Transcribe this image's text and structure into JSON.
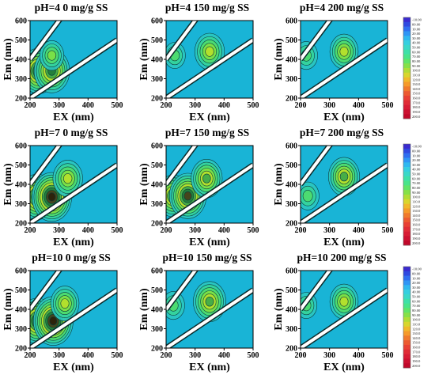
{
  "chart_data": [
    {
      "type": "heatmap",
      "title": "pH=4  0 mg/g SS",
      "xlabel": "EX (nm)",
      "ylabel": "Em (nm)",
      "xlim": [
        200,
        500
      ],
      "ylim": [
        200,
        600
      ],
      "xticks": [
        "200",
        "300",
        "400",
        "500"
      ],
      "yticks": [
        "200",
        "300",
        "400",
        "500",
        "600"
      ],
      "peaks": [
        {
          "ex": 230,
          "em": 340,
          "level": 0.85
        },
        {
          "ex": 275,
          "em": 340,
          "level": 0.8
        },
        {
          "ex": 275,
          "em": 420,
          "level": 0.4
        }
      ]
    },
    {
      "type": "heatmap",
      "title": "pH=4 150 mg/g SS",
      "xlabel": "EX (nm)",
      "ylabel": "Em (nm)",
      "xlim": [
        200,
        500
      ],
      "ylim": [
        200,
        600
      ],
      "xticks": [
        "200",
        "300",
        "400",
        "500"
      ],
      "yticks": [
        "200",
        "300",
        "400",
        "500",
        "600"
      ],
      "peaks": [
        {
          "ex": 350,
          "em": 440,
          "level": 0.6
        },
        {
          "ex": 230,
          "em": 420,
          "level": 0.3
        }
      ]
    },
    {
      "type": "heatmap",
      "title": "pH=4 200 mg/g SS",
      "xlabel": "EX (nm)",
      "ylabel": "Em (nm)",
      "xlim": [
        200,
        500
      ],
      "ylim": [
        200,
        600
      ],
      "xticks": [
        "200",
        "300",
        "400",
        "500"
      ],
      "yticks": [
        "200",
        "300",
        "400",
        "500",
        "600"
      ],
      "peaks": [
        {
          "ex": 350,
          "em": 440,
          "level": 0.55
        },
        {
          "ex": 220,
          "em": 420,
          "level": 0.35
        }
      ]
    },
    {
      "type": "heatmap",
      "title": "pH=7  0 mg/g SS",
      "xlabel": "EX (nm)",
      "ylabel": "Em (nm)",
      "xlim": [
        200,
        500
      ],
      "ylim": [
        200,
        600
      ],
      "xticks": [
        "200",
        "300",
        "400",
        "500"
      ],
      "yticks": [
        "200",
        "300",
        "400",
        "500",
        "600"
      ],
      "peaks": [
        {
          "ex": 225,
          "em": 335,
          "level": 0.85
        },
        {
          "ex": 275,
          "em": 335,
          "level": 0.95
        },
        {
          "ex": 330,
          "em": 430,
          "level": 0.6
        }
      ]
    },
    {
      "type": "heatmap",
      "title": "pH=7 150 mg/g SS",
      "xlabel": "EX (nm)",
      "ylabel": "Em (nm)",
      "xlim": [
        200,
        500
      ],
      "ylim": [
        200,
        600
      ],
      "xticks": [
        "200",
        "300",
        "400",
        "500"
      ],
      "yticks": [
        "200",
        "300",
        "400",
        "500",
        "600"
      ],
      "peaks": [
        {
          "ex": 225,
          "em": 340,
          "level": 0.75
        },
        {
          "ex": 275,
          "em": 340,
          "level": 0.85
        },
        {
          "ex": 340,
          "em": 430,
          "level": 0.65
        }
      ]
    },
    {
      "type": "heatmap",
      "title": "pH=7 200 mg/g SS",
      "xlabel": "EX (nm)",
      "ylabel": "Em (nm)",
      "xlim": [
        200,
        500
      ],
      "ylim": [
        200,
        600
      ],
      "xticks": [
        "200",
        "300",
        "400",
        "500"
      ],
      "yticks": [
        "200",
        "300",
        "400",
        "500",
        "600"
      ],
      "peaks": [
        {
          "ex": 350,
          "em": 440,
          "level": 0.65
        },
        {
          "ex": 225,
          "em": 340,
          "level": 0.35
        }
      ]
    },
    {
      "type": "heatmap",
      "title": "pH=10  0 mg/g SS",
      "xlabel": "EX (nm)",
      "ylabel": "Em (nm)",
      "xlim": [
        200,
        500
      ],
      "ylim": [
        200,
        600
      ],
      "xticks": [
        "200",
        "300",
        "400",
        "500"
      ],
      "yticks": [
        "200",
        "300",
        "400",
        "500",
        "600"
      ],
      "peaks": [
        {
          "ex": 225,
          "em": 340,
          "level": 0.85
        },
        {
          "ex": 280,
          "em": 340,
          "level": 0.95
        },
        {
          "ex": 320,
          "em": 430,
          "level": 0.55
        }
      ]
    },
    {
      "type": "heatmap",
      "title": "pH=10 150 mg/g SS",
      "xlabel": "EX (nm)",
      "ylabel": "Em (nm)",
      "xlim": [
        200,
        500
      ],
      "ylim": [
        200,
        600
      ],
      "xticks": [
        "200",
        "300",
        "400",
        "500"
      ],
      "yticks": [
        "200",
        "300",
        "400",
        "500",
        "600"
      ],
      "peaks": [
        {
          "ex": 350,
          "em": 440,
          "level": 0.7
        },
        {
          "ex": 225,
          "em": 420,
          "level": 0.35
        }
      ]
    },
    {
      "type": "heatmap",
      "title": "pH=10 200 mg/g SS",
      "xlabel": "EX (nm)",
      "ylabel": "Em (nm)",
      "xlim": [
        200,
        500
      ],
      "ylim": [
        200,
        600
      ],
      "xticks": [
        "200",
        "300",
        "400",
        "500"
      ],
      "yticks": [
        "200",
        "300",
        "400",
        "500",
        "600"
      ],
      "peaks": [
        {
          "ex": 350,
          "em": 440,
          "level": 0.55
        },
        {
          "ex": 220,
          "em": 420,
          "level": 0.3
        }
      ]
    }
  ],
  "colorbars": [
    {
      "labels": [
        "-10.00",
        "00.00",
        "10.00",
        "20.00",
        "30.00",
        "40.00",
        "50.00",
        "60.00",
        "70.00",
        "80.00",
        "90.00",
        "100.0",
        "110.0",
        "120.0",
        "130.0",
        "140.0",
        "150.0",
        "160.0",
        "170.0",
        "180.0",
        "190.0",
        "200.0"
      ]
    },
    {
      "labels": [
        "-10.00",
        "00.00",
        "10.00",
        "20.00",
        "30.00",
        "40.00",
        "50.00",
        "60.00",
        "70.00",
        "80.00",
        "90.00",
        "100.0",
        "110.0",
        "120.0",
        "130.0",
        "140.0",
        "150.0",
        "160.0",
        "170.0",
        "180.0",
        "190.0",
        "200.0"
      ]
    },
    {
      "labels": [
        "-10.00",
        "00.00",
        "10.00",
        "20.00",
        "30.00",
        "40.00",
        "50.00",
        "60.00",
        "70.00",
        "80.00",
        "90.00",
        "100.0",
        "110.0",
        "120.0",
        "130.0",
        "140.0",
        "150.0",
        "160.0",
        "170.0",
        "180.0",
        "190.0",
        "200.0"
      ]
    }
  ],
  "colors": {
    "background": "#ffffff",
    "contour_base": "#19b4d6",
    "scatter_band": "#ffffff"
  }
}
